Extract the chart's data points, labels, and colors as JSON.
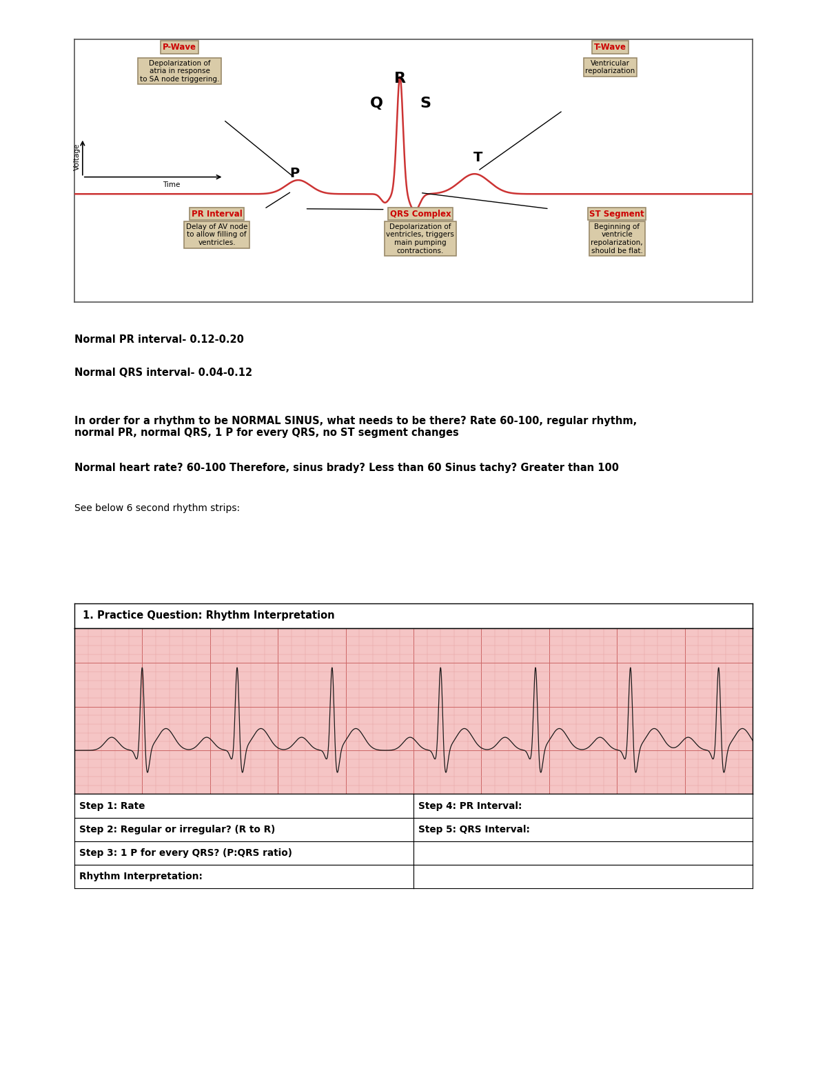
{
  "bg_color": "#ffffff",
  "page_width": 12.0,
  "page_height": 15.53,
  "ekg_title": "1. Practice Question: Rhythm Interpretation",
  "text_lines": [
    {
      "text": "Normal PR interval- 0.12-0.20",
      "bold": true,
      "fontsize": 10.5
    },
    {
      "text": "Normal QRS interval- 0.04-0.12",
      "bold": true,
      "fontsize": 10.5
    },
    {
      "text": "In order for a rhythm to be NORMAL SINUS, what needs to be there? Rate 60-100, regular rhythm,\nnormal PR, normal QRS, 1 P for every QRS, no ST segment changes",
      "bold": true,
      "fontsize": 10.5
    },
    {
      "text": "Normal heart rate? 60-100 Therefore, sinus brady? Less than 60 Sinus tachy? Greater than 100",
      "bold": true,
      "fontsize": 10.5
    },
    {
      "text": "See below 6 second rhythm strips:",
      "bold": false,
      "fontsize": 10.0
    }
  ],
  "table_rows": [
    [
      "Step 1: Rate",
      "Step 4: PR Interval:"
    ],
    [
      "Step 2: Regular or irregular? (R to R)",
      "Step 5: QRS Interval:"
    ],
    [
      "Step 3: 1 P for every QRS? (P:QRS ratio)",
      ""
    ],
    [
      "Rhythm Interpretation:",
      ""
    ]
  ],
  "ekg_bg_color": "#f5c5c5",
  "ekg_grid_minor_color": "#e8a0a0",
  "ekg_grid_major_color": "#cc6666",
  "ekg_line_color": "#1a1a1a",
  "label_color_red": "#cc0000",
  "label_box_facecolor": "#d9cba8",
  "label_box_edgecolor": "#9a8a6a",
  "diagram_labels": {
    "p_wave_title": "P-Wave",
    "p_wave_body": "Depolarization of\natria in response\nto SA node triggering.",
    "t_wave_title": "T-Wave",
    "t_wave_body": "Ventricular\nrepolarization",
    "pr_title": "PR Interval",
    "pr_body": "Delay of AV node\nto allow filling of\nventricles.",
    "qrs_title": "QRS Complex",
    "qrs_body": "Depolarization of\nventricles, triggers\nmain pumping\ncontractions.",
    "st_title": "ST Segment",
    "st_body": "Beginning of\nventricle\nrepolarization,\nshould be flat."
  }
}
